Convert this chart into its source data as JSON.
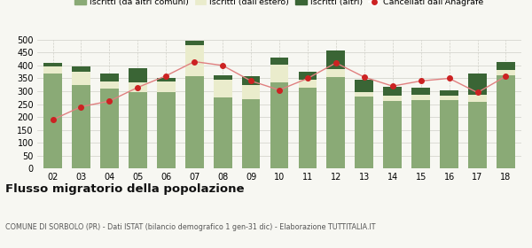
{
  "years": [
    "02",
    "03",
    "04",
    "05",
    "06",
    "07",
    "08",
    "09",
    "10",
    "11",
    "12",
    "13",
    "14",
    "15",
    "16",
    "17",
    "18"
  ],
  "iscritti_altri_comuni": [
    370,
    325,
    310,
    295,
    298,
    360,
    275,
    270,
    335,
    315,
    355,
    278,
    262,
    265,
    265,
    258,
    362
  ],
  "iscritti_estero": [
    28,
    50,
    28,
    38,
    40,
    118,
    70,
    55,
    68,
    30,
    32,
    18,
    22,
    22,
    18,
    30,
    22
  ],
  "iscritti_altri": [
    12,
    20,
    32,
    55,
    12,
    18,
    18,
    32,
    28,
    32,
    70,
    50,
    35,
    28,
    22,
    82,
    28
  ],
  "cancellati": [
    190,
    240,
    262,
    315,
    360,
    415,
    400,
    340,
    305,
    350,
    410,
    355,
    320,
    340,
    350,
    295,
    358
  ],
  "ylim": [
    0,
    500
  ],
  "yticks": [
    0,
    50,
    100,
    150,
    200,
    250,
    300,
    350,
    400,
    450,
    500
  ],
  "color_altri_comuni": "#8aaa76",
  "color_estero": "#eaeccc",
  "color_altri": "#3a6535",
  "color_cancellati": "#cc2222",
  "color_line": "#e08080",
  "background": "#f7f7f2",
  "grid_color": "#d0d0c8",
  "title": "Flusso migratorio della popolazione",
  "subtitle": "COMUNE DI SORBOLO (PR) - Dati ISTAT (bilancio demografico 1 gen-31 dic) - Elaborazione TUTTITALIA.IT",
  "legend_labels": [
    "Iscritti (da altri comuni)",
    "Iscritti (dall'estero)",
    "Iscritti (altri)",
    "Cancellati dall'Anagrafe"
  ]
}
